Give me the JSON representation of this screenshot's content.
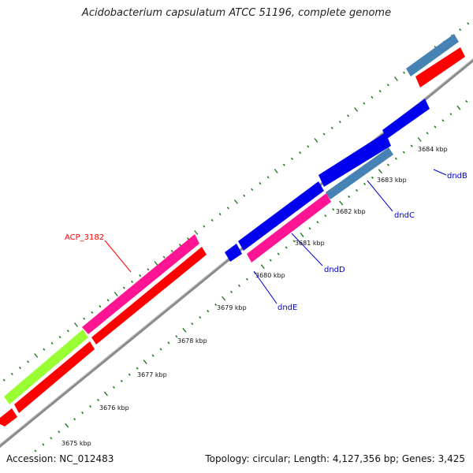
{
  "title": "Acidobacterium capsulatum ATCC 51196, complete genome",
  "footer": {
    "accession": "Accession: NC_012483",
    "summary": "Topology: circular; Length: 4,127,356 bp; Genes: 3,425"
  },
  "kbp_labels": [
    "3675 kbp",
    "3676 kbp",
    "3677 kbp",
    "3678 kbp",
    "3679 kbp",
    "3680 kbp",
    "3681 kbp",
    "3682 kbp",
    "3683 kbp",
    "3684 kbp"
  ],
  "gene_labels": {
    "acp_3182": "ACP_3182",
    "dndE": "dndE",
    "dndD": "dndD",
    "dndC": "dndC",
    "dndB": "dndB"
  },
  "colors": {
    "backbone": "#8c8c8c",
    "red": "#ff0000",
    "magenta": "#ff1493",
    "lime": "#99ff33",
    "blue": "#0000ee",
    "steelblue": "#4682b4",
    "tick": "#1f7a1f",
    "label_red": "#ff0000",
    "label_blue": "#0000cc"
  }
}
